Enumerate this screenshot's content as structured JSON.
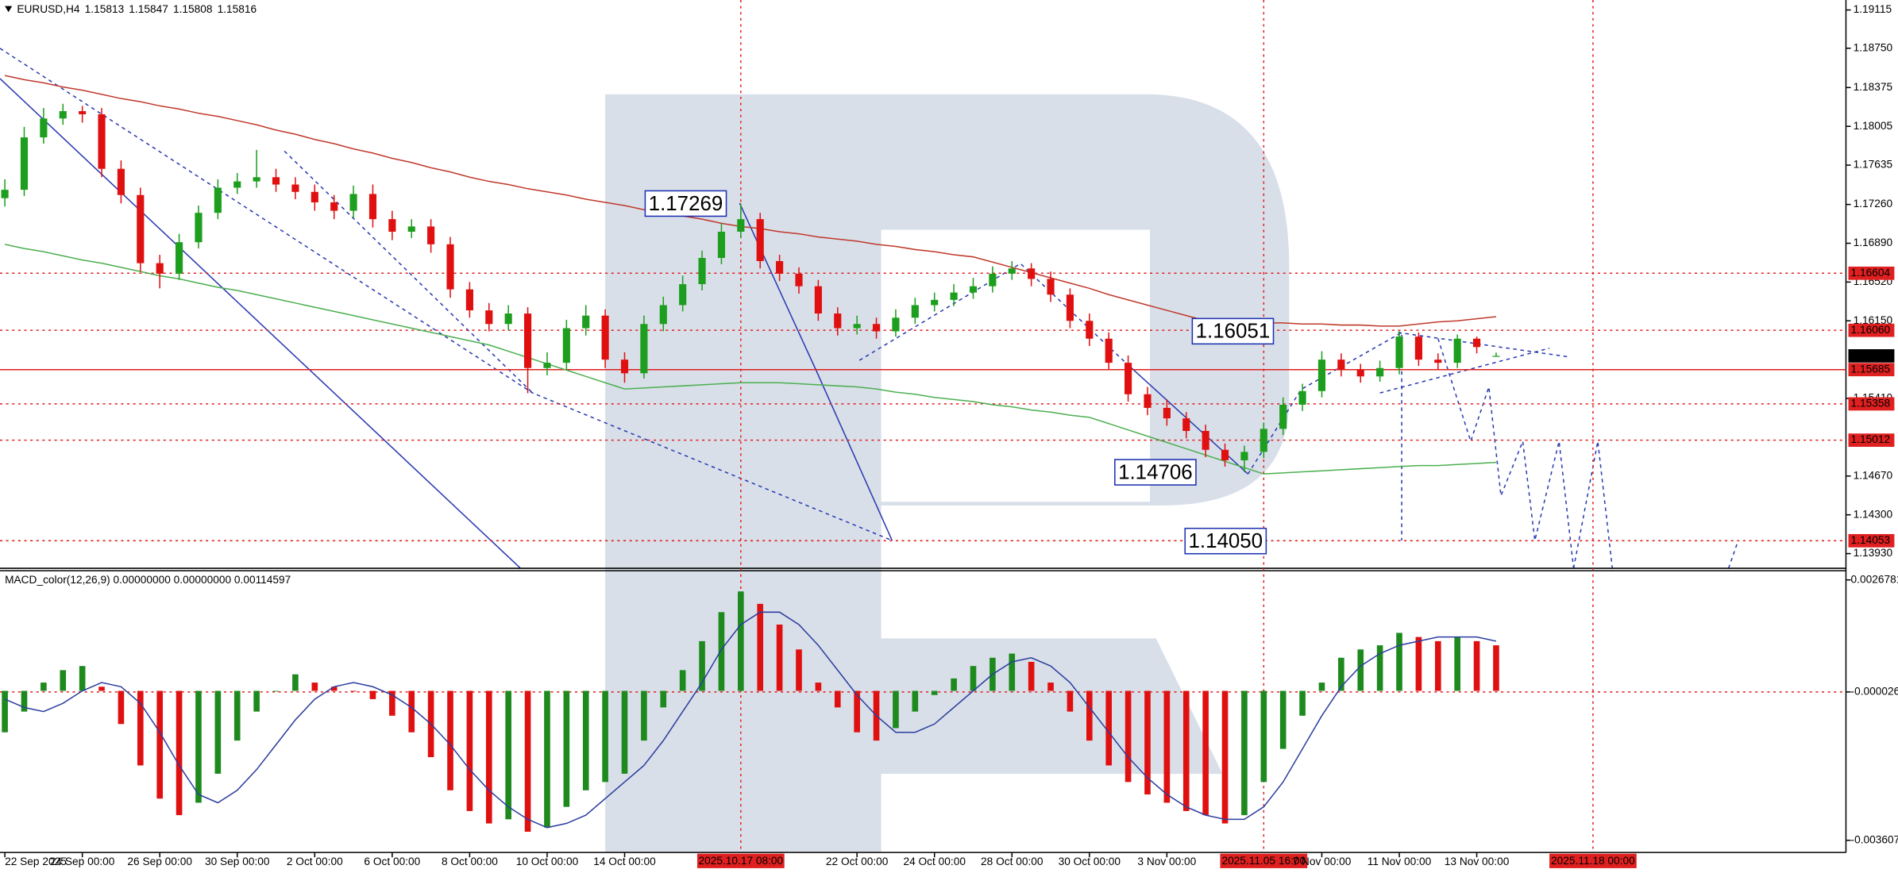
{
  "chart_data": [
    {
      "type": "candlestick",
      "symbol": "EURUSD,H4",
      "categories": [
        "22 Sep 2025",
        null,
        null,
        null,
        "24 Sep 00:00",
        null,
        null,
        null,
        "26 Sep 00:00",
        null,
        null,
        null,
        "30 Sep 00:00",
        null,
        null,
        null,
        "2 Oct 00:00",
        null,
        null,
        null,
        "6 Oct 00:00",
        null,
        null,
        null,
        "8 Oct 00:00",
        null,
        null,
        null,
        "10 Oct 00:00",
        null,
        null,
        null,
        "14 Oct 00:00",
        null,
        null,
        null,
        null,
        null,
        "2025.10.17 08:00",
        null,
        null,
        null,
        null,
        null,
        "22 Oct 00:00",
        null,
        null,
        null,
        "24 Oct 00:00",
        null,
        null,
        null,
        "28 Oct 00:00",
        null,
        null,
        null,
        "30 Oct 00:00",
        null,
        null,
        null,
        "3 Nov 00:00",
        null,
        null,
        null,
        null,
        "2025.11.05 16:00",
        null,
        null,
        "7 Nov 00:00",
        null,
        null,
        null,
        "11 Nov 00:00",
        null,
        null,
        null,
        "13 Nov 00:00",
        null,
        null,
        null,
        null,
        null,
        "2025.11.18 00:00",
        null
      ],
      "open": [
        1.1732,
        1.174,
        1.179,
        1.1808,
        1.1815,
        1.1812,
        1.176,
        1.1735,
        1.167,
        1.166,
        1.169,
        1.1718,
        1.1742,
        1.1748,
        1.1752,
        1.1745,
        1.1738,
        1.1728,
        1.172,
        1.1736,
        1.1712,
        1.17,
        1.1705,
        1.1688,
        1.1645,
        1.1625,
        1.1612,
        1.1622,
        1.157,
        1.1575,
        1.1608,
        1.162,
        1.1578,
        1.1565,
        1.1612,
        1.163,
        1.165,
        1.1675,
        1.17,
        1.1712,
        1.1672,
        1.166,
        1.1648,
        1.1622,
        1.1608,
        1.1612,
        1.1605,
        1.1618,
        1.163,
        1.1635,
        1.1642,
        1.1648,
        1.166,
        1.1665,
        1.1655,
        1.164,
        1.1615,
        1.1598,
        1.1575,
        1.1545,
        1.1532,
        1.1522,
        1.151,
        1.1492,
        1.1482,
        1.149,
        1.1512,
        1.1535,
        1.1548,
        1.1578,
        1.1568,
        1.1562,
        1.157,
        1.16,
        1.1578,
        1.1575,
        1.1598,
        1.15813,
        null,
        null,
        null,
        null,
        null,
        null
      ],
      "high": [
        1.175,
        1.18,
        1.1818,
        1.1822,
        1.182,
        1.1818,
        1.1768,
        1.1742,
        1.1678,
        1.1698,
        1.1725,
        1.175,
        1.1756,
        1.1778,
        1.176,
        1.1752,
        1.1745,
        1.1735,
        1.1744,
        1.1745,
        1.172,
        1.1712,
        1.1712,
        1.1695,
        1.1652,
        1.1632,
        1.163,
        1.1628,
        1.1585,
        1.1616,
        1.163,
        1.1626,
        1.1585,
        1.162,
        1.1638,
        1.1658,
        1.1682,
        1.1708,
        1.17269,
        1.1718,
        1.1678,
        1.1666,
        1.1654,
        1.1628,
        1.162,
        1.1618,
        1.1626,
        1.1637,
        1.1642,
        1.165,
        1.1656,
        1.1667,
        1.1672,
        1.167,
        1.1662,
        1.1646,
        1.1622,
        1.1604,
        1.1582,
        1.1552,
        1.154,
        1.1528,
        1.1516,
        1.1498,
        1.1496,
        1.1518,
        1.1542,
        1.1555,
        1.1586,
        1.1584,
        1.1574,
        1.1577,
        1.16051,
        1.1604,
        1.1584,
        1.1602,
        1.16,
        1.15847,
        null,
        null,
        null,
        null,
        null,
        null
      ],
      "low": [
        1.1724,
        1.1734,
        1.1784,
        1.1802,
        1.1804,
        1.1752,
        1.1727,
        1.1662,
        1.1646,
        1.1654,
        1.1684,
        1.1712,
        1.1736,
        1.1742,
        1.1738,
        1.1731,
        1.172,
        1.1712,
        1.1713,
        1.1704,
        1.1692,
        1.1694,
        1.168,
        1.1637,
        1.1618,
        1.1605,
        1.1606,
        1.1546,
        1.1563,
        1.1569,
        1.1601,
        1.157,
        1.1556,
        1.156,
        1.1605,
        1.1624,
        1.1644,
        1.1669,
        1.1694,
        1.1665,
        1.1653,
        1.1641,
        1.1615,
        1.1601,
        1.1602,
        1.1598,
        1.16,
        1.1612,
        1.1624,
        1.1629,
        1.1636,
        1.1642,
        1.1654,
        1.1648,
        1.1633,
        1.1608,
        1.1591,
        1.1568,
        1.1538,
        1.1525,
        1.1515,
        1.1503,
        1.1485,
        1.1476,
        1.14706,
        1.1484,
        1.1506,
        1.1529,
        1.1542,
        1.1562,
        1.1556,
        1.1557,
        1.1564,
        1.1572,
        1.1569,
        1.157,
        1.1584,
        1.15808,
        null,
        null,
        null,
        null,
        null,
        null
      ],
      "close": [
        1.174,
        1.179,
        1.1808,
        1.1815,
        1.1812,
        1.176,
        1.1735,
        1.167,
        1.166,
        1.169,
        1.1718,
        1.1742,
        1.1748,
        1.1752,
        1.1745,
        1.1738,
        1.1728,
        1.172,
        1.1736,
        1.1712,
        1.17,
        1.1705,
        1.1688,
        1.1645,
        1.1625,
        1.1612,
        1.1622,
        1.157,
        1.1575,
        1.1608,
        1.162,
        1.1578,
        1.1565,
        1.1612,
        1.163,
        1.165,
        1.1675,
        1.17,
        1.1712,
        1.1672,
        1.166,
        1.1648,
        1.1622,
        1.1608,
        1.1612,
        1.1605,
        1.1618,
        1.163,
        1.1635,
        1.1642,
        1.1648,
        1.166,
        1.1665,
        1.1655,
        1.164,
        1.1615,
        1.1598,
        1.1575,
        1.1545,
        1.1532,
        1.1522,
        1.151,
        1.1492,
        1.1482,
        1.149,
        1.1512,
        1.1535,
        1.1548,
        1.1578,
        1.1568,
        1.1562,
        1.157,
        1.16,
        1.1578,
        1.1575,
        1.1598,
        1.159,
        1.15816,
        null,
        null,
        null,
        null,
        null,
        null
      ],
      "up_color": "#1e9e1e",
      "down_color": "#e01010",
      "ma_lines": [
        {
          "color": "#c0392b",
          "values": [
            1.1849,
            1.1845,
            1.1842,
            1.1838,
            1.1835,
            1.1831,
            1.1827,
            1.1824,
            1.182,
            1.1817,
            1.1813,
            1.181,
            1.1806,
            1.1802,
            1.1797,
            1.1793,
            1.1788,
            1.1784,
            1.1779,
            1.1775,
            1.177,
            1.1766,
            1.1761,
            1.1757,
            1.1752,
            1.1748,
            1.1745,
            1.1741,
            1.1738,
            1.1735,
            1.1731,
            1.1728,
            1.1725,
            1.1721,
            1.1718,
            1.1715,
            1.1712,
            1.1708,
            1.1705,
            1.1703,
            1.17,
            1.1698,
            1.1695,
            1.1693,
            1.1691,
            1.1688,
            1.1686,
            1.1683,
            1.1681,
            1.1678,
            1.1676,
            1.1671,
            1.1666,
            1.1661,
            1.1656,
            1.1651,
            1.1646,
            1.164,
            1.1635,
            1.163,
            1.1625,
            1.162,
            1.1615,
            1.1614,
            1.1614,
            1.1613,
            1.1613,
            1.1612,
            1.1612,
            1.1611,
            1.1611,
            1.161,
            1.161,
            1.1612,
            1.1614,
            1.1615,
            1.1617,
            1.1619,
            null,
            null,
            null,
            null,
            null,
            null
          ]
        },
        {
          "color": "#4caf50",
          "values": [
            1.1688,
            1.1684,
            1.1681,
            1.1677,
            1.1673,
            1.167,
            1.1666,
            1.1662,
            1.1658,
            1.1655,
            1.1651,
            1.1647,
            1.1644,
            1.164,
            1.1636,
            1.1632,
            1.1628,
            1.1624,
            1.162,
            1.1616,
            1.1612,
            1.1608,
            1.1604,
            1.16,
            1.1596,
            1.1592,
            1.1586,
            1.158,
            1.1574,
            1.1568,
            1.1562,
            1.1556,
            1.155,
            1.1551,
            1.1552,
            1.1553,
            1.1554,
            1.1555,
            1.1556,
            1.1556,
            1.1556,
            1.1555,
            1.1554,
            1.1553,
            1.1552,
            1.155,
            1.1547,
            1.1545,
            1.1542,
            1.154,
            1.1538,
            1.1535,
            1.1533,
            1.153,
            1.1528,
            1.1525,
            1.1523,
            1.1517,
            1.1511,
            1.1505,
            1.1499,
            1.1493,
            1.1487,
            1.1481,
            1.1475,
            1.1469,
            1.147,
            1.1471,
            1.1472,
            1.1473,
            1.1474,
            1.1475,
            1.1476,
            1.1477,
            1.1477,
            1.1478,
            1.1479,
            1.148,
            null,
            null,
            null,
            null,
            null,
            null
          ]
        }
      ],
      "ylim": [
        1.1379,
        1.1921
      ],
      "yticks": [
        1.19115,
        {
          "value": 1.1875,
          "label": "1.18750"
        },
        1.18375,
        1.18005,
        1.17635,
        {
          "value": 1.1726,
          "label": "1.17260"
        },
        {
          "value": 1.1689,
          "label": "1.16890"
        },
        {
          "value": 1.1652,
          "label": "1.16520"
        },
        {
          "value": 1.1615,
          "label": "1.16150"
        },
        {
          "value": 1.1541,
          "label": "1.15410"
        },
        {
          "value": 1.1467,
          "label": "1.14670"
        },
        {
          "value": 1.143,
          "label": "1.14300"
        },
        {
          "value": 1.1393,
          "label": "1.13930"
        }
      ],
      "levels": [
        {
          "value": 1.16604
        },
        {
          "value": 1.1606,
          "label": "1.16060"
        },
        {
          "value": 1.15685,
          "style": "solid"
        },
        {
          "value": 1.15358
        },
        {
          "value": 1.15012
        },
        {
          "value": 1.14053
        }
      ],
      "level_color": "#e02020",
      "projection_target": {
        "value": 1.1405,
        "label": "1.14050"
      },
      "annotation_color": "#1a2fb0"
    },
    {
      "type": "macd",
      "title": "MACD_color(12,26,9) 0.00000000 0.00000000 0.00114597",
      "histogram": [
        -0.001,
        -0.0005,
        0.0002,
        0.0005,
        0.0006,
        0.0001,
        -0.0008,
        -0.0018,
        -0.0026,
        -0.003,
        -0.0027,
        -0.002,
        -0.0012,
        -0.0005,
        0.0,
        0.0004,
        0.0002,
        0.0001,
        0.0,
        -0.0002,
        -0.0006,
        -0.001,
        -0.0016,
        -0.0024,
        -0.0029,
        -0.0032,
        -0.0031,
        -0.0034,
        -0.0033,
        -0.0028,
        -0.0024,
        -0.0022,
        -0.002,
        -0.0012,
        -0.0004,
        0.0005,
        0.0012,
        0.0019,
        0.0024,
        0.0021,
        0.0016,
        0.001,
        0.0002,
        -0.0004,
        -0.001,
        -0.0012,
        -0.0009,
        -0.0005,
        -0.0001,
        0.0003,
        0.0006,
        0.0008,
        0.0009,
        0.0007,
        0.0002,
        -0.0005,
        -0.0012,
        -0.0018,
        -0.0022,
        -0.0025,
        -0.0027,
        -0.0029,
        -0.003,
        -0.0032,
        -0.003,
        -0.0022,
        -0.0014,
        -0.0006,
        0.0002,
        0.0008,
        0.001,
        0.0011,
        0.0014,
        0.0013,
        0.0012,
        0.0013,
        0.0012,
        0.0011,
        null,
        null,
        null,
        null,
        null,
        null
      ],
      "signal": [
        -0.0002,
        -0.0004,
        -0.0005,
        -0.0003,
        0.0,
        0.0002,
        0.0001,
        -0.0003,
        -0.001,
        -0.0018,
        -0.0025,
        -0.0027,
        -0.0024,
        -0.0019,
        -0.0013,
        -0.0007,
        -0.0002,
        0.0001,
        0.0002,
        0.0001,
        -0.0001,
        -0.0004,
        -0.0008,
        -0.0013,
        -0.0019,
        -0.0024,
        -0.0028,
        -0.0031,
        -0.0033,
        -0.0032,
        -0.003,
        -0.0026,
        -0.0022,
        -0.0018,
        -0.0012,
        -0.0005,
        0.0002,
        0.001,
        0.0016,
        0.0019,
        0.0019,
        0.0016,
        0.0011,
        0.0005,
        -0.0001,
        -0.0006,
        -0.001,
        -0.001,
        -0.0008,
        -0.0004,
        0.0,
        0.0004,
        0.0007,
        0.0008,
        0.0006,
        0.0002,
        -0.0004,
        -0.001,
        -0.0016,
        -0.0021,
        -0.0025,
        -0.0028,
        -0.003,
        -0.0031,
        -0.0031,
        -0.0028,
        -0.0022,
        -0.0014,
        -0.0006,
        0.0001,
        0.0006,
        0.0009,
        0.0011,
        0.0012,
        0.0013,
        0.0013,
        0.0013,
        0.0012,
        null,
        null,
        null,
        null,
        null,
        null
      ],
      "up_color": "#1e8a1e",
      "down_color": "#e01010",
      "signal_color": "#2c3e9e",
      "ylim": [
        -0.0039,
        0.0029
      ],
      "yticks": [
        0.0026781,
        -2.6e-05,
        -0.0036072
      ],
      "zero_line": true
    }
  ]
}
